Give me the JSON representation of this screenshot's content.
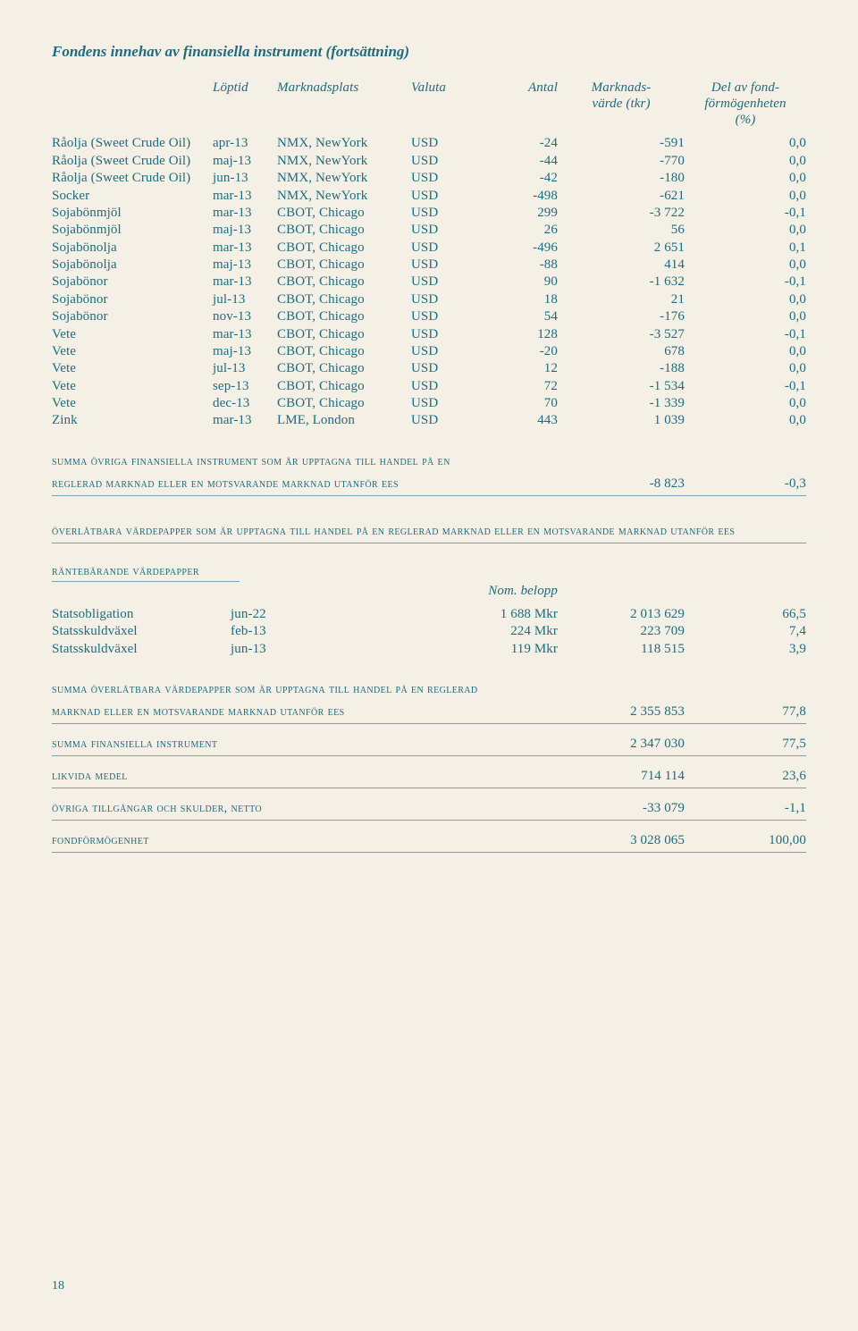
{
  "title": "Fondens innehav av finansiella instrument (fortsättning)",
  "headers": {
    "loptid": "Löptid",
    "marknadsplats": "Marknadsplats",
    "valuta": "Valuta",
    "antal": "Antal",
    "marknadsvarde": "Marknads-\nvärde (tkr)",
    "del": "Del av fond-\nförmögenheten\n(%)"
  },
  "rows": [
    {
      "name": "Råolja (Sweet Crude Oil)",
      "loptid": "apr-13",
      "plats": "NMX, NewYork",
      "val": "USD",
      "antal": "-24",
      "mv": "-591",
      "pct": "0,0"
    },
    {
      "name": "Råolja (Sweet Crude Oil)",
      "loptid": "maj-13",
      "plats": "NMX, NewYork",
      "val": "USD",
      "antal": "-44",
      "mv": "-770",
      "pct": "0,0"
    },
    {
      "name": "Råolja (Sweet Crude Oil)",
      "loptid": "jun-13",
      "plats": "NMX, NewYork",
      "val": "USD",
      "antal": "-42",
      "mv": "-180",
      "pct": "0,0"
    },
    {
      "name": "Socker",
      "loptid": "mar-13",
      "plats": "NMX, NewYork",
      "val": "USD",
      "antal": "-498",
      "mv": "-621",
      "pct": "0,0"
    },
    {
      "name": "Sojabönmjöl",
      "loptid": "mar-13",
      "plats": "CBOT, Chicago",
      "val": "USD",
      "antal": "299",
      "mv": "-3 722",
      "pct": "-0,1"
    },
    {
      "name": "Sojabönmjöl",
      "loptid": "maj-13",
      "plats": "CBOT, Chicago",
      "val": "USD",
      "antal": "26",
      "mv": "56",
      "pct": "0,0"
    },
    {
      "name": "Sojabönolja",
      "loptid": "mar-13",
      "plats": "CBOT, Chicago",
      "val": "USD",
      "antal": "-496",
      "mv": "2 651",
      "pct": "0,1"
    },
    {
      "name": "Sojabönolja",
      "loptid": "maj-13",
      "plats": "CBOT, Chicago",
      "val": "USD",
      "antal": "-88",
      "mv": "414",
      "pct": "0,0"
    },
    {
      "name": "Sojabönor",
      "loptid": "mar-13",
      "plats": "CBOT, Chicago",
      "val": "USD",
      "antal": "90",
      "mv": "-1 632",
      "pct": "-0,1"
    },
    {
      "name": "Sojabönor",
      "loptid": "jul-13",
      "plats": "CBOT, Chicago",
      "val": "USD",
      "antal": "18",
      "mv": "21",
      "pct": "0,0"
    },
    {
      "name": "Sojabönor",
      "loptid": "nov-13",
      "plats": "CBOT, Chicago",
      "val": "USD",
      "antal": "54",
      "mv": "-176",
      "pct": "0,0"
    },
    {
      "name": "Vete",
      "loptid": "mar-13",
      "plats": "CBOT, Chicago",
      "val": "USD",
      "antal": "128",
      "mv": "-3 527",
      "pct": "-0,1"
    },
    {
      "name": "Vete",
      "loptid": "maj-13",
      "plats": "CBOT, Chicago",
      "val": "USD",
      "antal": "-20",
      "mv": "678",
      "pct": "0,0"
    },
    {
      "name": "Vete",
      "loptid": "jul-13",
      "plats": "CBOT, Chicago",
      "val": "USD",
      "antal": "12",
      "mv": "-188",
      "pct": "0,0"
    },
    {
      "name": "Vete",
      "loptid": "sep-13",
      "plats": "CBOT, Chicago",
      "val": "USD",
      "antal": "72",
      "mv": "-1 534",
      "pct": "-0,1"
    },
    {
      "name": "Vete",
      "loptid": "dec-13",
      "plats": "CBOT, Chicago",
      "val": "USD",
      "antal": "70",
      "mv": "-1 339",
      "pct": "0,0"
    },
    {
      "name": "Zink",
      "loptid": "mar-13",
      "plats": "LME, London",
      "val": "USD",
      "antal": "443",
      "mv": "1 039",
      "pct": "0,0"
    }
  ],
  "sum1": {
    "label_a": "summa övriga finansiella instrument som är upptagna till handel på en",
    "label_b": "reglerad marknad eller en motsvarande marknad utanför ees",
    "mv": "-8 823",
    "pct": "-0,3"
  },
  "section2": {
    "head": "överlåtbara värdepapper som är upptagna till handel på en reglerad marknad eller en motsvarande marknad utanför ees",
    "subhead": "räntebärande värdepapper",
    "nomhead": "Nom. belopp",
    "rows": [
      {
        "name": "Statsobligation",
        "loptid": "jun-22",
        "nom": "1 688  Mkr",
        "mv": "2 013 629",
        "pct": "66,5"
      },
      {
        "name": "Statsskuldväxel",
        "loptid": "feb-13",
        "nom": "224  Mkr",
        "mv": "223 709",
        "pct": "7,4"
      },
      {
        "name": "Statsskuldväxel",
        "loptid": "jun-13",
        "nom": "119  Mkr",
        "mv": "118 515",
        "pct": "3,9"
      }
    ]
  },
  "sums2": [
    {
      "label_a": "summa överlåtbara värdepapper som är upptagna till handel på en reglerad",
      "label_b": "marknad eller en motsvarande marknad utanför ees",
      "mv": "2 355 853",
      "pct": "77,8"
    },
    {
      "label_a": "summa finansiella instrument",
      "label_b": "",
      "mv": "2 347 030",
      "pct": "77,5"
    },
    {
      "label_a": "likvida medel",
      "label_b": "",
      "mv": "714 114",
      "pct": "23,6"
    },
    {
      "label_a": "övriga tillgångar och skulder, netto",
      "label_b": "",
      "mv": "-33 079",
      "pct": "-1,1"
    },
    {
      "label_a": "fondförmögenhet",
      "label_b": "",
      "mv": "3 028 065",
      "pct": "100,00"
    }
  ],
  "pagenum": "18"
}
